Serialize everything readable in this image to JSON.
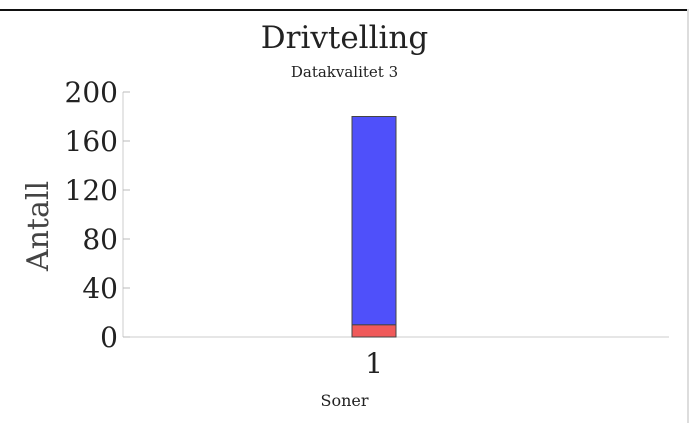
{
  "chart_data": {
    "type": "bar",
    "stacked": true,
    "title": "Drivtelling",
    "subtitle": "Datakvalitet 3",
    "xlabel": "Soner",
    "ylabel": "Antall",
    "categories": [
      "1"
    ],
    "series": [
      {
        "values": [
          10
        ],
        "color": "#f05a5a"
      },
      {
        "values": [
          170
        ],
        "color": "#4f50fa"
      }
    ],
    "ylim": [
      0,
      200
    ],
    "yticks": [
      0,
      40,
      80,
      120,
      160,
      200
    ],
    "grid": false
  }
}
